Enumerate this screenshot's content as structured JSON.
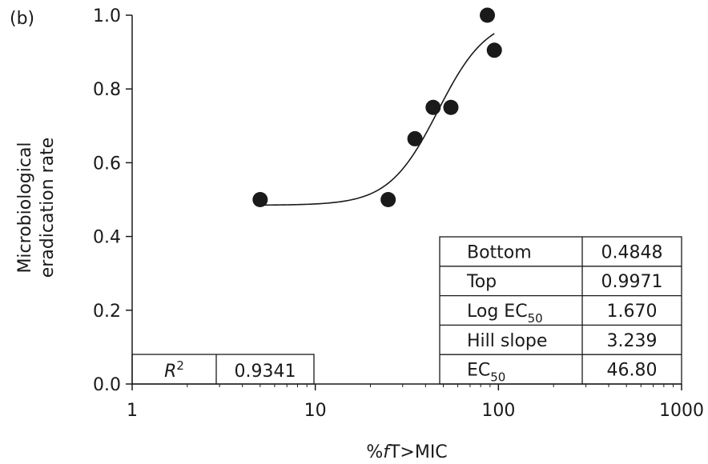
{
  "panel_label": "(b)",
  "chart_data": {
    "type": "scatter",
    "title": "",
    "xlabel": "%fT>MIC",
    "ylabel_lines": [
      "Microbiological",
      "eradication rate"
    ],
    "x_scale": "log",
    "xlim": [
      1,
      1000
    ],
    "ylim": [
      0,
      1.0
    ],
    "x_ticks": [
      "1",
      "10",
      "100",
      "1000"
    ],
    "y_ticks": [
      "0.0",
      "0.2",
      "0.4",
      "0.6",
      "0.8",
      "1.0"
    ],
    "grid": false,
    "points": [
      {
        "x": 5,
        "y": 0.5
      },
      {
        "x": 25,
        "y": 0.5
      },
      {
        "x": 35,
        "y": 0.665
      },
      {
        "x": 44,
        "y": 0.75
      },
      {
        "x": 55,
        "y": 0.75
      },
      {
        "x": 87,
        "y": 1.0
      },
      {
        "x": 95,
        "y": 0.905
      }
    ],
    "fit": {
      "model": "sigmoid",
      "x_range": [
        5,
        95
      ],
      "bottom": 0.4848,
      "top": 0.9971,
      "log_ec50": 1.67,
      "hill_slope": 3.239
    },
    "params_table": [
      {
        "label": "Bottom",
        "value": "0.4848"
      },
      {
        "label": "Top",
        "value": "0.9971"
      },
      {
        "label": "Log EC",
        "sub": "50",
        "value": "1.670"
      },
      {
        "label": "Hill slope",
        "value": "3.239"
      },
      {
        "label": "EC",
        "sub": "50",
        "value": "46.80"
      }
    ],
    "r2_table": {
      "label": "R",
      "sup": "2",
      "value": "0.9341"
    }
  }
}
